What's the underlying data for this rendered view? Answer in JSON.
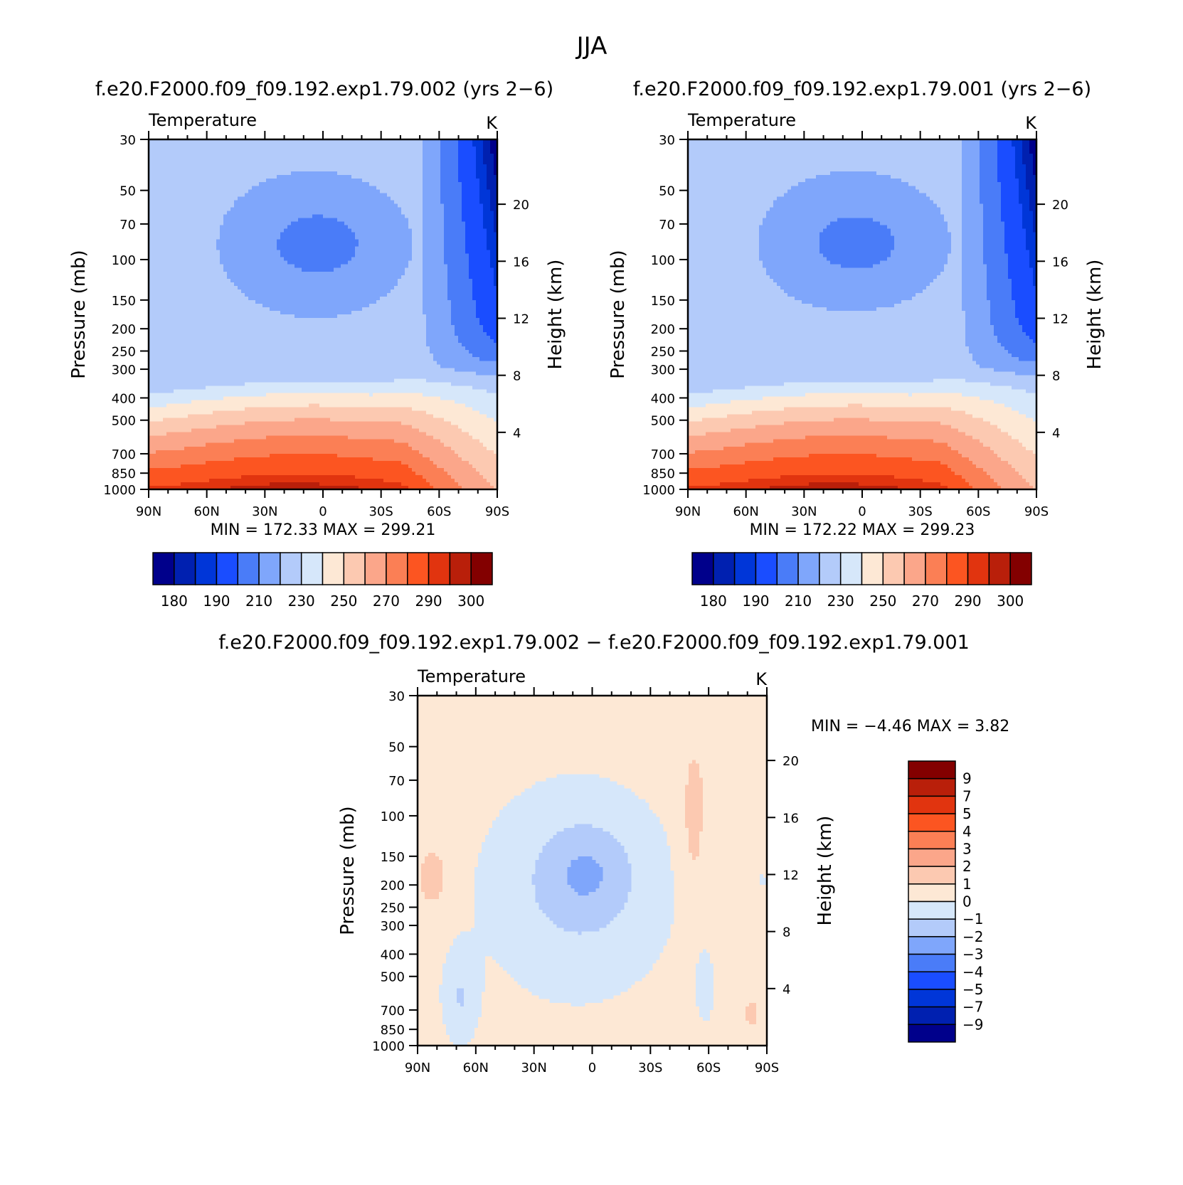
{
  "figure_title": "JJA",
  "colors": {
    "abs_levels": [
      "#00008b",
      "#0020b0",
      "#0036d8",
      "#1a4dff",
      "#4a7cf8",
      "#7fa6fb",
      "#b3cbfa",
      "#d6e7fa",
      "#fde8d5",
      "#fcc9b1",
      "#fba68a",
      "#fb7f55",
      "#fc5521",
      "#e1340f",
      "#b91f0a",
      "#830000"
    ],
    "diff_levels": [
      "#00008b",
      "#0020b0",
      "#0036d8",
      "#1a4dff",
      "#4a7cf8",
      "#7fa6fb",
      "#b3cbfa",
      "#d6e7fa",
      "#fde8d5",
      "#fcc9b1",
      "#fba68a",
      "#fb7f55",
      "#fc5521",
      "#e1340f",
      "#b91f0a",
      "#830000"
    ]
  },
  "chart_data": [
    {
      "type": "heatmap",
      "title": "f.e20.F2000.f09_f09.192.exp1.79.002 (yrs 2−6)",
      "left_label": "Temperature",
      "right_label": "K",
      "ylabel": "Pressure (mb)",
      "ylabel2": "Height (km)",
      "x_ticks": [
        "90N",
        "60N",
        "30N",
        "0",
        "30S",
        "60S",
        "90S"
      ],
      "y_ticks": [
        30,
        50,
        70,
        100,
        150,
        200,
        250,
        300,
        400,
        500,
        700,
        850,
        1000
      ],
      "height_ticks": [
        20,
        16,
        12,
        8,
        4
      ],
      "ylim": [
        30,
        1000
      ],
      "xlim": [
        90,
        -90
      ],
      "y_scale": "log",
      "stats": "MIN =  172.33   MAX =  299.21",
      "levels": [
        180,
        185,
        190,
        200,
        210,
        220,
        230,
        240,
        250,
        260,
        270,
        280,
        290,
        295,
        300
      ],
      "colorbar_labels": [
        "180",
        "190",
        "210",
        "230",
        "250",
        "270",
        "290",
        "300"
      ]
    },
    {
      "type": "heatmap",
      "title": "f.e20.F2000.f09_f09.192.exp1.79.001 (yrs 2−6)",
      "left_label": "Temperature",
      "right_label": "K",
      "ylabel": "Pressure (mb)",
      "ylabel2": "Height (km)",
      "x_ticks": [
        "90N",
        "60N",
        "30N",
        "0",
        "30S",
        "60S",
        "90S"
      ],
      "y_ticks": [
        30,
        50,
        70,
        100,
        150,
        200,
        250,
        300,
        400,
        500,
        700,
        850,
        1000
      ],
      "height_ticks": [
        20,
        16,
        12,
        8,
        4
      ],
      "ylim": [
        30,
        1000
      ],
      "xlim": [
        90,
        -90
      ],
      "y_scale": "log",
      "stats": "MIN =  172.22   MAX =  299.23",
      "levels": [
        180,
        185,
        190,
        200,
        210,
        220,
        230,
        240,
        250,
        260,
        270,
        280,
        290,
        295,
        300
      ],
      "colorbar_labels": [
        "180",
        "190",
        "210",
        "230",
        "250",
        "270",
        "290",
        "300"
      ]
    },
    {
      "type": "heatmap",
      "title": "f.e20.F2000.f09_f09.192.exp1.79.002 − f.e20.F2000.f09_f09.192.exp1.79.001",
      "left_label": "Temperature",
      "right_label": "K",
      "ylabel": "Pressure (mb)",
      "ylabel2": "Height (km)",
      "x_ticks": [
        "90N",
        "60N",
        "30N",
        "0",
        "30S",
        "60S",
        "90S"
      ],
      "y_ticks": [
        30,
        50,
        70,
        100,
        150,
        200,
        250,
        300,
        400,
        500,
        700,
        850,
        1000
      ],
      "height_ticks": [
        20,
        16,
        12,
        8,
        4
      ],
      "ylim": [
        30,
        1000
      ],
      "xlim": [
        90,
        -90
      ],
      "y_scale": "log",
      "stats": "MIN =   −4.46   MAX =    3.82",
      "levels": [
        -9,
        -7,
        -5,
        -4,
        -3,
        -2,
        -1,
        0,
        1,
        2,
        3,
        4,
        5,
        7,
        9
      ],
      "colorbar_labels": [
        "9",
        "7",
        "5",
        "4",
        "3",
        "2",
        "1",
        "0",
        "−1",
        "−2",
        "−3",
        "−4",
        "−5",
        "−7",
        "−9"
      ]
    }
  ]
}
